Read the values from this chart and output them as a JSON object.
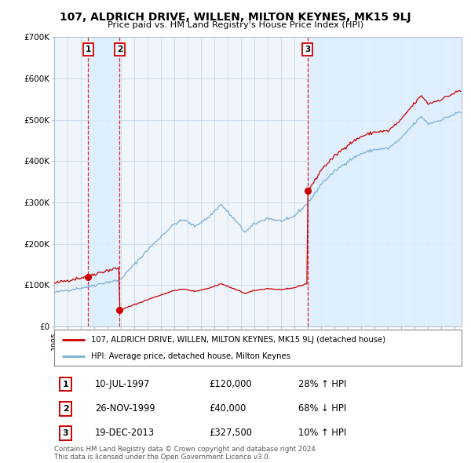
{
  "title": "107, ALDRICH DRIVE, WILLEN, MILTON KEYNES, MK15 9LJ",
  "subtitle": "Price paid vs. HM Land Registry's House Price Index (HPI)",
  "legend_line1": "107, ALDRICH DRIVE, WILLEN, MILTON KEYNES, MK15 9LJ (detached house)",
  "legend_line2": "HPI: Average price, detached house, Milton Keynes",
  "footer1": "Contains HM Land Registry data © Crown copyright and database right 2024.",
  "footer2": "This data is licensed under the Open Government Licence v3.0.",
  "sales": [
    {
      "label": "1",
      "date": "10-JUL-1997",
      "price": 120000,
      "pct": "28%",
      "dir": "↑",
      "x_year": 1997.53
    },
    {
      "label": "2",
      "date": "26-NOV-1999",
      "price": 40000,
      "pct": "68%",
      "dir": "↓",
      "x_year": 1999.9
    },
    {
      "label": "3",
      "date": "19-DEC-2013",
      "price": 327500,
      "pct": "10%",
      "dir": "↑",
      "x_year": 2013.97
    }
  ],
  "red_line_color": "#cc0000",
  "blue_line_color": "#7aaed6",
  "plot_bg_color": "#f0f5fb",
  "grid_color": "#c8d8e8",
  "sale_vline_color": "#dd0000",
  "shade_color": "#ddeeff",
  "ylim": [
    0,
    700000
  ],
  "xlim_start": 1995.0,
  "xlim_end": 2025.5,
  "yticks": [
    0,
    100000,
    200000,
    300000,
    400000,
    500000,
    600000,
    700000
  ],
  "ytick_labels": [
    "£0",
    "£100K",
    "£200K",
    "£300K",
    "£400K",
    "£500K",
    "£600K",
    "£700K"
  ]
}
